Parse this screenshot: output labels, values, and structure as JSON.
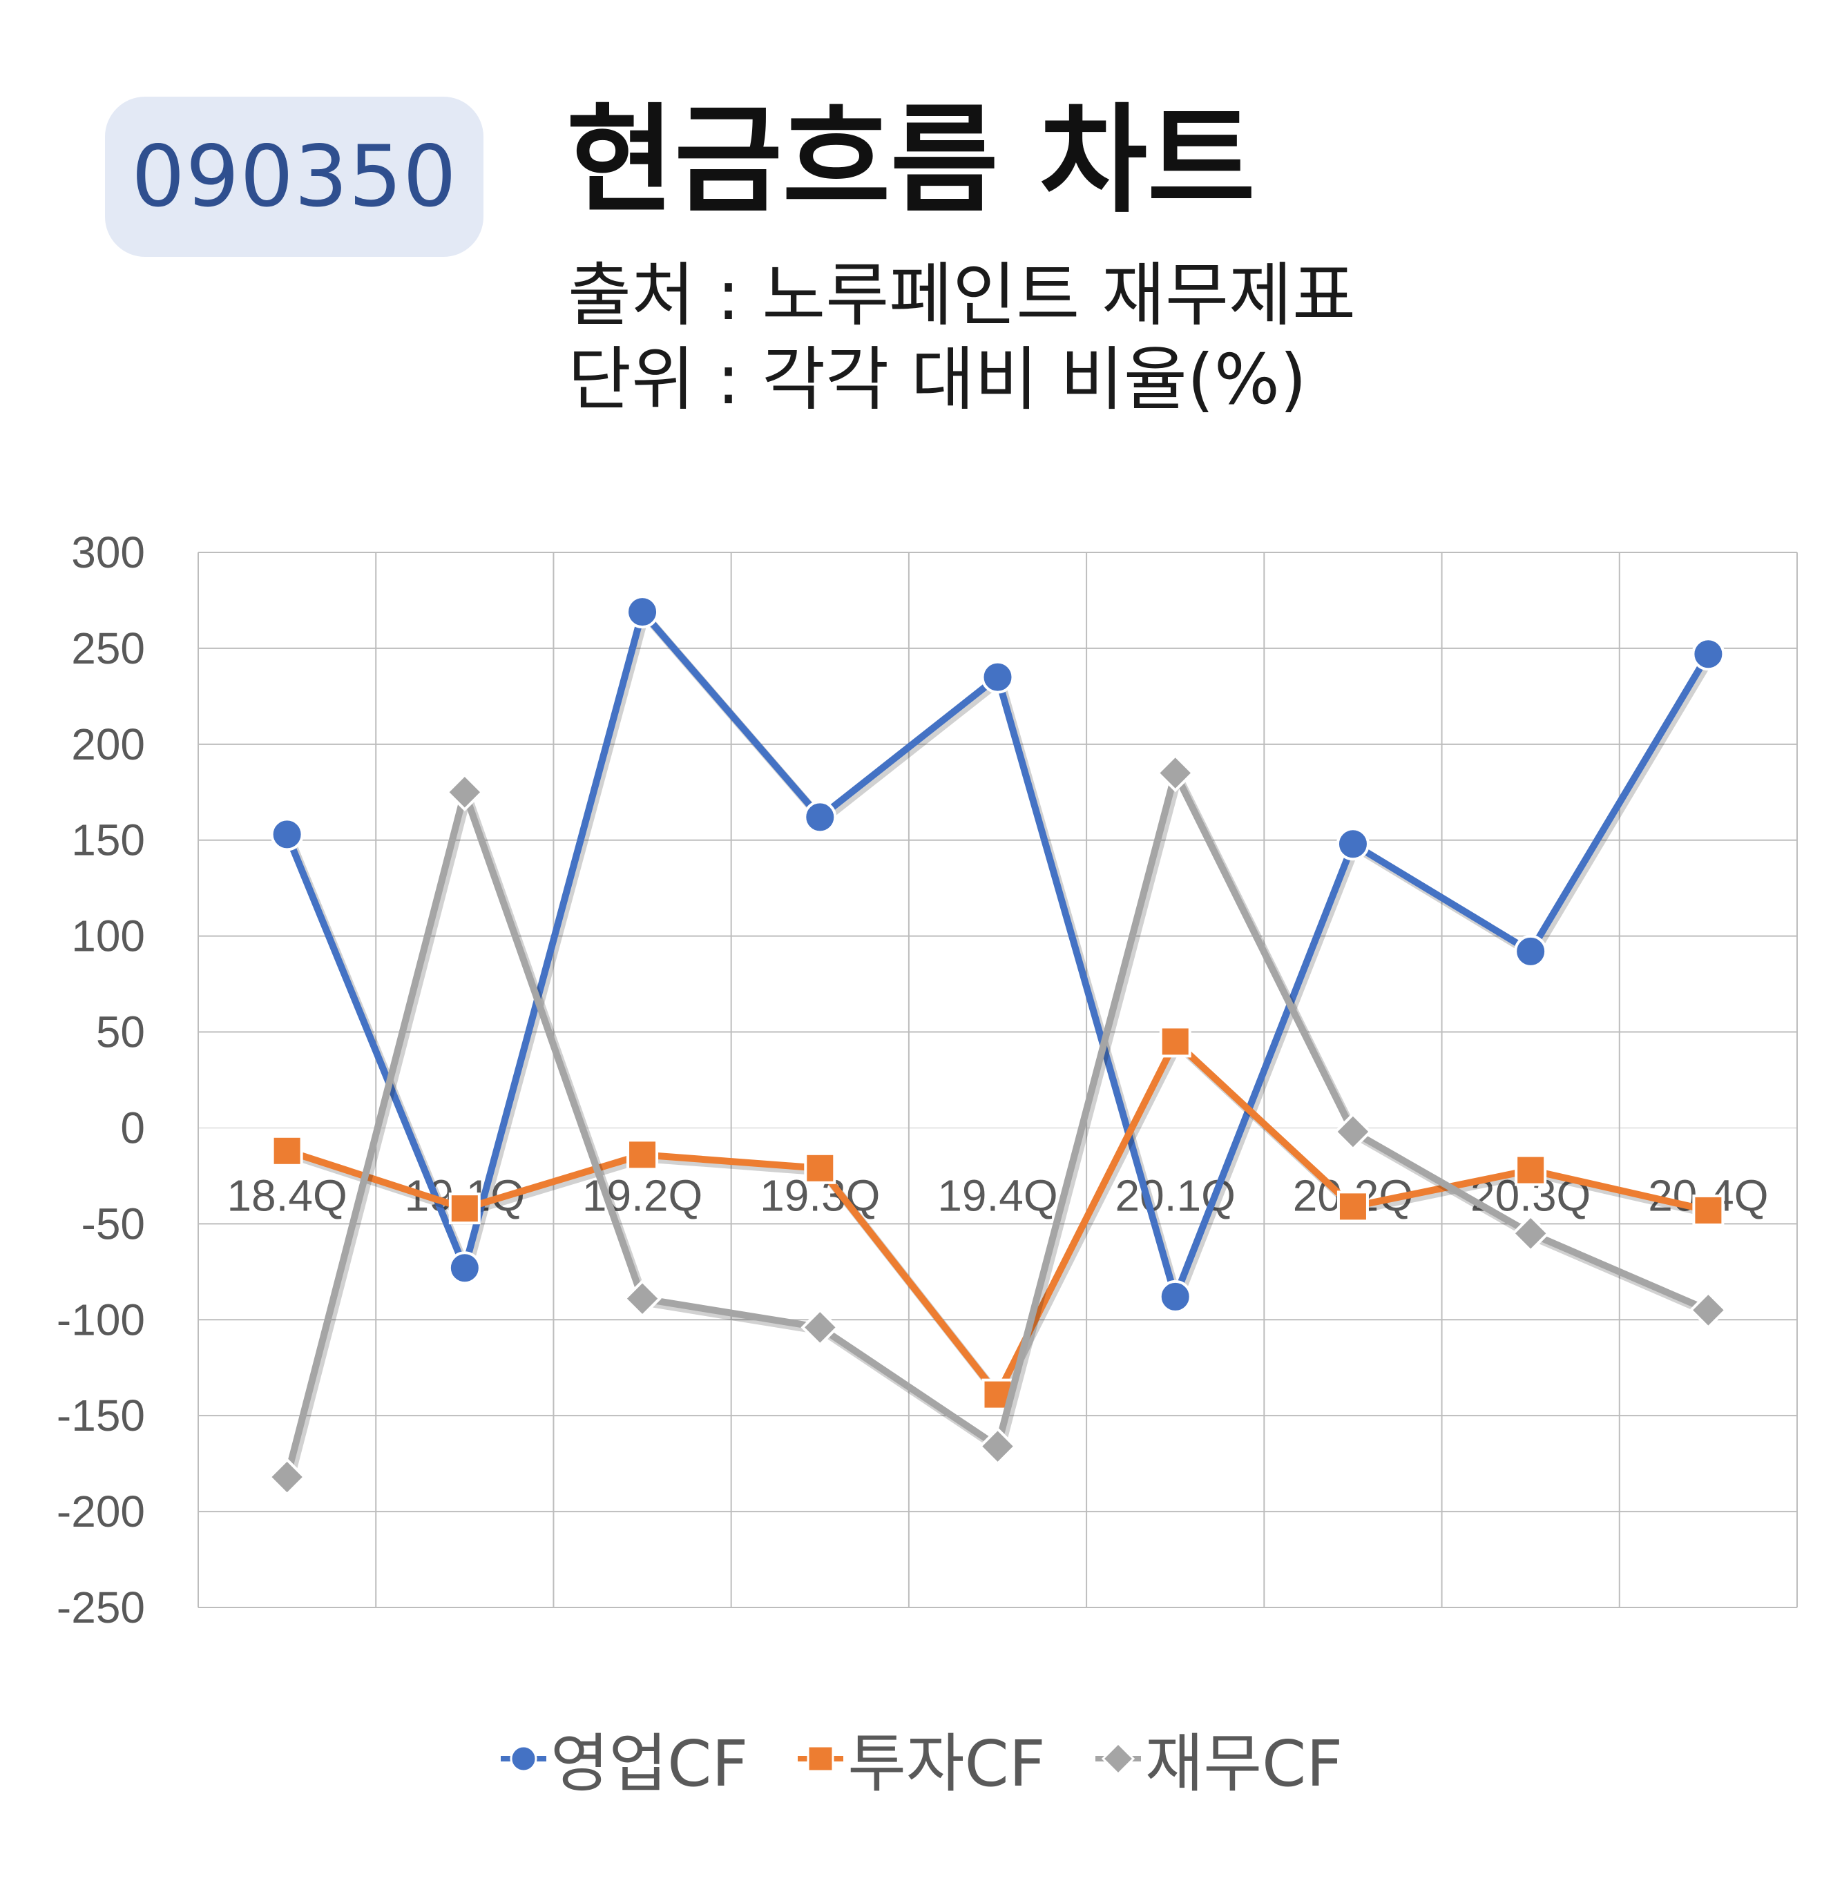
{
  "badge": {
    "code": "090350"
  },
  "header": {
    "title": "현금흐름 차트",
    "source": "출처 : 노루페인트 재무제표",
    "unit": "단위 : 각각 대비 비율(%)"
  },
  "chart_data": {
    "type": "line",
    "categories": [
      "18.4Q",
      "19.1Q",
      "19.2Q",
      "19.3Q",
      "19.4Q",
      "20.1Q",
      "20.2Q",
      "20.3Q",
      "20.4Q"
    ],
    "ylim": [
      -250,
      300
    ],
    "yticks": [
      300,
      250,
      200,
      150,
      100,
      50,
      0,
      -50,
      -100,
      -150,
      -200,
      -250
    ],
    "grid": true,
    "legend_position": "bottom",
    "series": [
      {
        "name": "영업CF",
        "color": "#4472c4",
        "marker": "circle",
        "values": [
          153,
          -73,
          269,
          162,
          235,
          -88,
          148,
          92,
          247
        ]
      },
      {
        "name": "투자CF",
        "color": "#ed7d31",
        "marker": "square",
        "values": [
          -12,
          -42,
          -14,
          -21,
          -139,
          45,
          -41,
          -22,
          -43
        ]
      },
      {
        "name": "재무CF",
        "color": "#a5a5a5",
        "marker": "diamond",
        "values": [
          -182,
          175,
          -89,
          -104,
          -166,
          185,
          -2,
          -55,
          -95
        ]
      }
    ]
  }
}
